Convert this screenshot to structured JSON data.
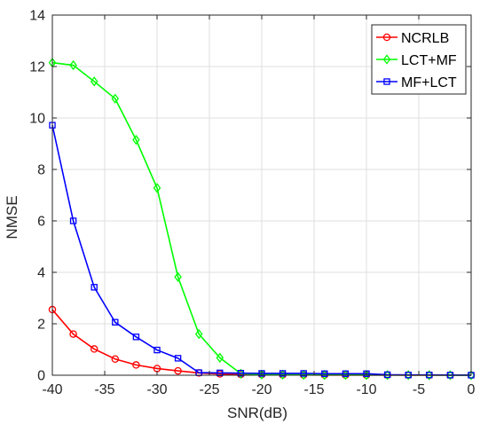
{
  "chart_data": {
    "type": "line",
    "xlabel": "SNR(dB)",
    "ylabel": "NMSE",
    "xlim": [
      -40,
      0
    ],
    "ylim": [
      0,
      14
    ],
    "xticks": [
      -40,
      -35,
      -30,
      -25,
      -20,
      -15,
      -10,
      -5,
      0
    ],
    "yticks": [
      0,
      2,
      4,
      6,
      8,
      10,
      12,
      14
    ],
    "grid": true,
    "legend_position": "top-right",
    "x": [
      -40,
      -38,
      -36,
      -34,
      -32,
      -30,
      -28,
      -26,
      -24,
      -22,
      -20,
      -18,
      -16,
      -14,
      -12,
      -10,
      -8,
      -6,
      -4,
      -2,
      0
    ],
    "series": [
      {
        "name": "NCRLB",
        "color": "#ff0000",
        "marker": "circle",
        "values": [
          2.55,
          1.6,
          1.02,
          0.63,
          0.4,
          0.26,
          0.17,
          0.09,
          0.05,
          0.03,
          0.02,
          0.015,
          0.01,
          0.008,
          0.006,
          0.005,
          0.004,
          0.003,
          0.002,
          0.002,
          0.001
        ]
      },
      {
        "name": "LCT+MF",
        "color": "#00ff00",
        "marker": "diamond",
        "values": [
          12.15,
          12.05,
          11.42,
          10.75,
          9.15,
          7.28,
          3.82,
          1.6,
          0.68,
          0.06,
          0.03,
          0.02,
          0.015,
          0.01,
          0.01,
          0.008,
          0.006,
          0.005,
          0.004,
          0.003,
          0.002
        ]
      },
      {
        "name": "MF+LCT",
        "color": "#0000ff",
        "marker": "square",
        "values": [
          9.72,
          6.0,
          3.42,
          2.06,
          1.49,
          0.98,
          0.66,
          0.1,
          0.09,
          0.08,
          0.07,
          0.07,
          0.07,
          0.06,
          0.06,
          0.06,
          0.02,
          0.01,
          0.01,
          0.005,
          0.003
        ]
      }
    ]
  }
}
